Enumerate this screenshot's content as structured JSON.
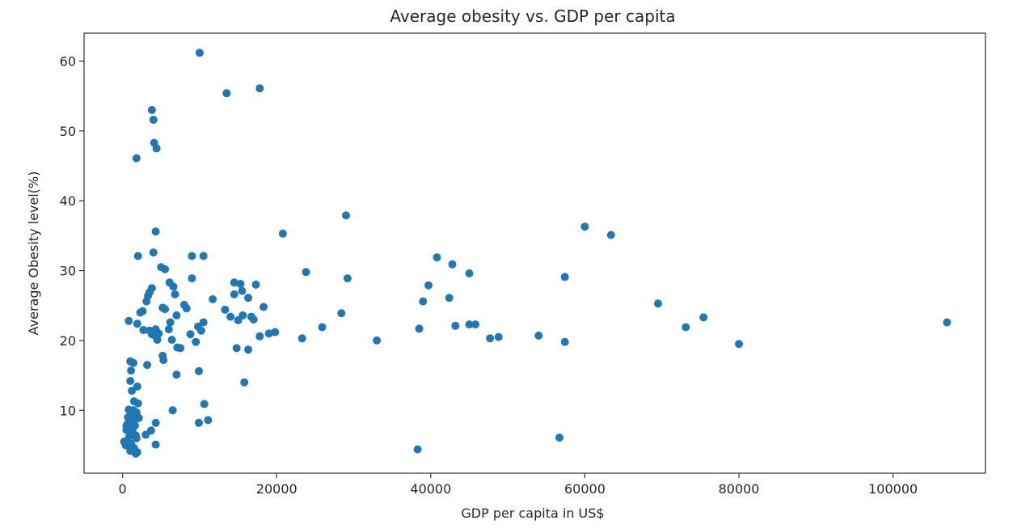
{
  "chart_data": {
    "type": "scatter",
    "title": "Average obesity vs. GDP per capita",
    "xlabel": "GDP per capita in US$",
    "ylabel": "Average Obesity level(%)",
    "xlim": [
      -5000,
      112000
    ],
    "ylim": [
      1,
      64
    ],
    "xticks": [
      0,
      20000,
      40000,
      60000,
      80000,
      100000
    ],
    "xtick_labels": [
      "0",
      "20000",
      "40000",
      "60000",
      "80000",
      "100000"
    ],
    "yticks": [
      10,
      20,
      30,
      40,
      50,
      60
    ],
    "ytick_labels": [
      "10",
      "20",
      "30",
      "40",
      "50",
      "60"
    ],
    "grid": false,
    "marker_color": "#1f77b4",
    "points": [
      [
        10000,
        61.2
      ],
      [
        13500,
        55.4
      ],
      [
        17800,
        56.1
      ],
      [
        3800,
        53.0
      ],
      [
        4000,
        51.6
      ],
      [
        4100,
        48.3
      ],
      [
        4400,
        47.5
      ],
      [
        1800,
        46.1
      ],
      [
        29000,
        37.9
      ],
      [
        20800,
        35.3
      ],
      [
        60000,
        36.3
      ],
      [
        63400,
        35.1
      ],
      [
        4300,
        35.6
      ],
      [
        2000,
        32.1
      ],
      [
        4000,
        32.6
      ],
      [
        9000,
        32.1
      ],
      [
        10500,
        32.1
      ],
      [
        40800,
        31.9
      ],
      [
        42800,
        30.9
      ],
      [
        23800,
        29.8
      ],
      [
        45000,
        29.6
      ],
      [
        57400,
        29.1
      ],
      [
        29200,
        28.9
      ],
      [
        39700,
        27.9
      ],
      [
        42400,
        26.1
      ],
      [
        39000,
        25.6
      ],
      [
        69500,
        25.3
      ],
      [
        75400,
        23.3
      ],
      [
        73100,
        21.9
      ],
      [
        80000,
        19.5
      ],
      [
        107000,
        22.6
      ],
      [
        38500,
        21.7
      ],
      [
        43200,
        22.1
      ],
      [
        45000,
        22.3
      ],
      [
        45800,
        22.3
      ],
      [
        47700,
        20.3
      ],
      [
        48800,
        20.5
      ],
      [
        54000,
        20.7
      ],
      [
        57400,
        19.8
      ],
      [
        33000,
        20.0
      ],
      [
        28400,
        23.9
      ],
      [
        25900,
        21.9
      ],
      [
        23300,
        20.3
      ],
      [
        38300,
        4.4
      ],
      [
        56700,
        6.1
      ],
      [
        800,
        22.8
      ],
      [
        1900,
        22.4
      ],
      [
        2300,
        24.0
      ],
      [
        2600,
        24.2
      ],
      [
        2700,
        21.5
      ],
      [
        3100,
        25.6
      ],
      [
        3300,
        26.4
      ],
      [
        3500,
        26.9
      ],
      [
        3800,
        27.5
      ],
      [
        3500,
        21.4
      ],
      [
        3800,
        20.9
      ],
      [
        4000,
        21.3
      ],
      [
        4200,
        20.7
      ],
      [
        4300,
        21.6
      ],
      [
        4500,
        20.1
      ],
      [
        4700,
        21.0
      ],
      [
        5000,
        30.5
      ],
      [
        5200,
        24.7
      ],
      [
        5500,
        30.2
      ],
      [
        5500,
        24.5
      ],
      [
        5200,
        17.8
      ],
      [
        5300,
        17.2
      ],
      [
        6000,
        21.6
      ],
      [
        6100,
        28.3
      ],
      [
        6200,
        22.6
      ],
      [
        6400,
        20.1
      ],
      [
        6600,
        27.7
      ],
      [
        6800,
        26.6
      ],
      [
        7000,
        23.6
      ],
      [
        7100,
        19.0
      ],
      [
        7500,
        18.9
      ],
      [
        7000,
        15.1
      ],
      [
        8000,
        25.1
      ],
      [
        8300,
        24.6
      ],
      [
        8800,
        20.9
      ],
      [
        9000,
        28.9
      ],
      [
        9500,
        19.8
      ],
      [
        9800,
        22.0
      ],
      [
        10200,
        21.4
      ],
      [
        10500,
        22.6
      ],
      [
        9900,
        15.6
      ],
      [
        9900,
        8.2
      ],
      [
        10600,
        10.9
      ],
      [
        11100,
        8.6
      ],
      [
        11700,
        25.9
      ],
      [
        13300,
        24.4
      ],
      [
        14000,
        23.4
      ],
      [
        14500,
        28.3
      ],
      [
        14500,
        26.6
      ],
      [
        14800,
        18.9
      ],
      [
        15000,
        22.9
      ],
      [
        15300,
        28.1
      ],
      [
        15500,
        27.1
      ],
      [
        15600,
        23.6
      ],
      [
        15800,
        14.0
      ],
      [
        16300,
        18.7
      ],
      [
        16300,
        26.1
      ],
      [
        16700,
        23.4
      ],
      [
        17000,
        23.0
      ],
      [
        17300,
        28.0
      ],
      [
        17800,
        20.6
      ],
      [
        18300,
        24.8
      ],
      [
        19000,
        21.0
      ],
      [
        19800,
        21.2
      ],
      [
        3200,
        16.5
      ],
      [
        3000,
        6.5
      ],
      [
        3700,
        7.1
      ],
      [
        4300,
        8.2
      ],
      [
        4300,
        5.1
      ],
      [
        6500,
        10.0
      ],
      [
        200,
        5.5
      ],
      [
        400,
        5.0
      ],
      [
        500,
        7.2
      ],
      [
        600,
        8.0
      ],
      [
        700,
        9.0
      ],
      [
        800,
        10.1
      ],
      [
        900,
        6.3
      ],
      [
        1000,
        4.2
      ],
      [
        1100,
        8.4
      ],
      [
        1200,
        7.5
      ],
      [
        1300,
        9.2
      ],
      [
        1400,
        10.0
      ],
      [
        1500,
        11.3
      ],
      [
        1600,
        8.7
      ],
      [
        1700,
        6.4
      ],
      [
        1800,
        9.7
      ],
      [
        1900,
        13.4
      ],
      [
        2000,
        11.0
      ],
      [
        1000,
        14.2
      ],
      [
        1100,
        15.7
      ],
      [
        1000,
        17.0
      ],
      [
        1400,
        16.8
      ],
      [
        1200,
        12.8
      ],
      [
        1500,
        4.6
      ],
      [
        1700,
        3.8
      ],
      [
        1900,
        4.0
      ],
      [
        1100,
        5.2
      ],
      [
        1300,
        6.9
      ],
      [
        700,
        5.8
      ],
      [
        500,
        7.8
      ],
      [
        900,
        8.9
      ],
      [
        1600,
        7.8
      ],
      [
        2100,
        8.9
      ],
      [
        1400,
        9.5
      ],
      [
        1800,
        6.0
      ]
    ]
  }
}
